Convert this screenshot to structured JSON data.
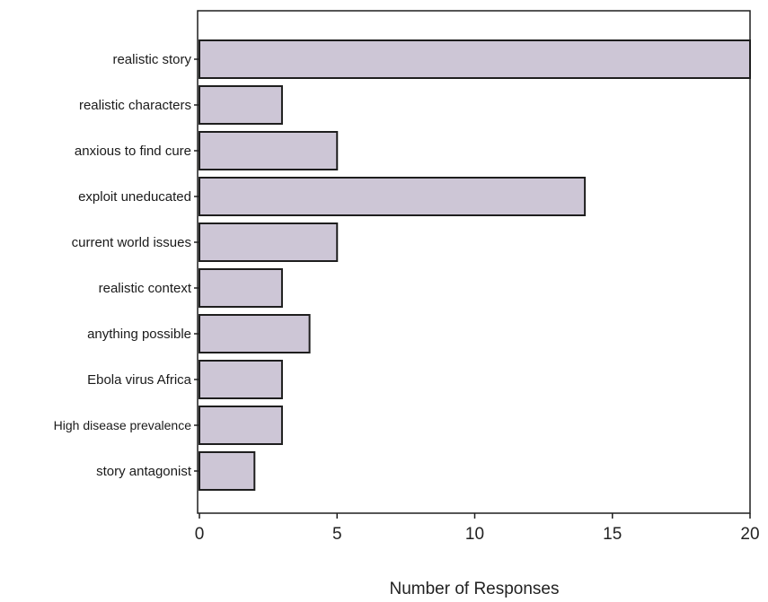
{
  "chart_data": {
    "type": "bar",
    "orientation": "horizontal",
    "categories": [
      "realistic story",
      "realistic characters",
      "anxious to find cure",
      "exploit uneducated",
      "current world issues",
      "realistic context",
      "anything possible",
      "Ebola virus Africa",
      "High disease prevalence",
      "story antagonist"
    ],
    "values": [
      20,
      3,
      5,
      14,
      5,
      3,
      4,
      3,
      3,
      2
    ],
    "xlabel": "Number of Responses",
    "ylabel": "",
    "xlim": [
      0,
      20
    ],
    "xticks": [
      "0",
      "5",
      "10",
      "15",
      "20"
    ],
    "grid": false,
    "bar_color": "#cdc6d6"
  }
}
